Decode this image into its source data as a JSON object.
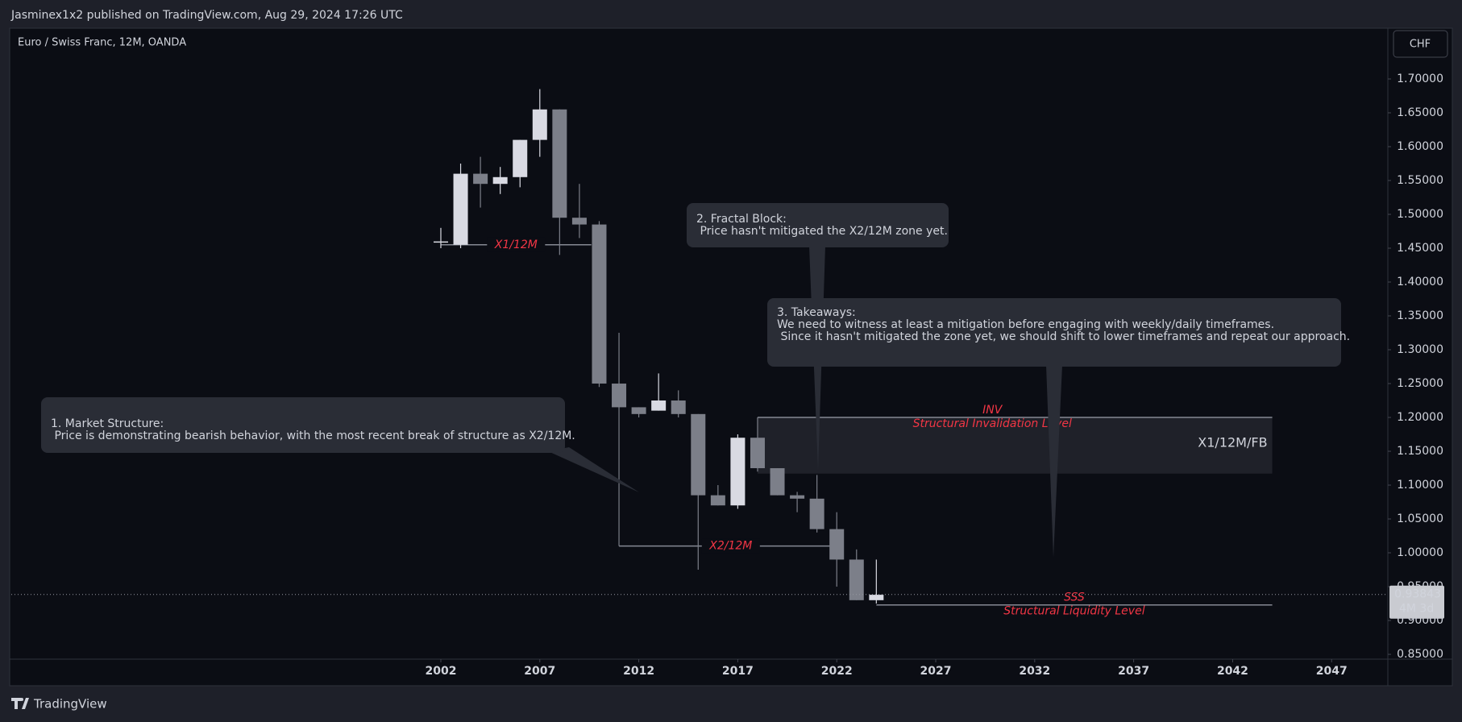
{
  "header": {
    "publisher": "Jasminex1x2 published on TradingView.com, Aug 29, 2024 17:26 UTC",
    "brand": "TradingView"
  },
  "chart_data": {
    "type": "candlestick",
    "title": "Euro / Swiss Franc, 12M, OANDA",
    "currency": "CHF",
    "x": [
      2002,
      2003,
      2004,
      2005,
      2006,
      2007,
      2008,
      2009,
      2010,
      2011,
      2012,
      2013,
      2014,
      2015,
      2016,
      2017,
      2018,
      2019,
      2020,
      2021,
      2022,
      2023,
      2024
    ],
    "open": [
      1.46,
      1.455,
      1.56,
      1.545,
      1.555,
      1.61,
      1.655,
      1.495,
      1.485,
      1.25,
      1.215,
      1.21,
      1.225,
      1.205,
      1.085,
      1.07,
      1.17,
      1.125,
      1.085,
      1.08,
      1.035,
      0.99,
      0.93
    ],
    "high": [
      1.48,
      1.575,
      1.585,
      1.57,
      1.61,
      1.685,
      1.655,
      1.545,
      1.49,
      1.325,
      1.215,
      1.265,
      1.24,
      1.205,
      1.1,
      1.175,
      1.2,
      1.125,
      1.09,
      1.115,
      1.06,
      1.005,
      0.99
    ],
    "low": [
      1.45,
      1.45,
      1.51,
      1.53,
      1.54,
      1.585,
      1.44,
      1.465,
      1.245,
      1.01,
      1.2,
      1.21,
      1.2,
      0.975,
      1.07,
      1.065,
      1.12,
      1.085,
      1.06,
      1.03,
      0.95,
      0.93,
      0.925
    ],
    "close": [
      1.46,
      1.56,
      1.545,
      1.555,
      1.61,
      1.655,
      1.495,
      1.485,
      1.25,
      1.215,
      1.205,
      1.225,
      1.205,
      1.085,
      1.07,
      1.17,
      1.125,
      1.085,
      1.08,
      1.035,
      0.99,
      0.93,
      0.938
    ],
    "up_color": "#d9dae3",
    "down_color": "#7c7f89",
    "xlim": [
      1980.3,
      2049.84
    ],
    "xticks": [
      2002,
      2007,
      2012,
      2017,
      2022,
      2027,
      2032,
      2037,
      2042,
      2047
    ],
    "ylim": [
      0.8429,
      1.7726
    ],
    "yticks": [
      {
        "value": 0.85,
        "label": "0.85000"
      },
      {
        "value": 0.9,
        "label": "0.90000"
      },
      {
        "value": 0.95,
        "label": "0.95000"
      },
      {
        "value": 1.0,
        "label": "1.00000"
      },
      {
        "value": 1.05,
        "label": "1.05000"
      },
      {
        "value": 1.1,
        "label": "1.10000"
      },
      {
        "value": 1.15,
        "label": "1.15000"
      },
      {
        "value": 1.2,
        "label": "1.20000"
      },
      {
        "value": 1.25,
        "label": "1.25000"
      },
      {
        "value": 1.3,
        "label": "1.30000"
      },
      {
        "value": 1.35,
        "label": "1.35000"
      },
      {
        "value": 1.4,
        "label": "1.40000"
      },
      {
        "value": 1.45,
        "label": "1.45000"
      },
      {
        "value": 1.5,
        "label": "1.50000"
      },
      {
        "value": 1.55,
        "label": "1.55000"
      },
      {
        "value": 1.6,
        "label": "1.60000"
      },
      {
        "value": 1.65,
        "label": "1.65000"
      },
      {
        "value": 1.7,
        "label": "1.70000"
      }
    ],
    "last_price": 0.93843,
    "countdown": "4M 3d",
    "levels": [
      {
        "label": "X1/12M",
        "value": 1.455,
        "x": [
          2002,
          2009.6
        ]
      },
      {
        "label": "X2/12M",
        "value": 1.01,
        "x": [
          2011,
          2022.3
        ]
      }
    ],
    "zone": {
      "label": "X1/12M/FB",
      "top": 1.2,
      "bottom": 1.117,
      "x": [
        2018,
        2044
      ],
      "line_label": "INV",
      "caption": "Structural Invalidation Level"
    },
    "liquidity": {
      "value": 0.923,
      "x": [
        2024,
        2044
      ],
      "line_label": "SSS",
      "caption": "Structural Liquidity Level"
    },
    "callouts": [
      {
        "lines": [
          "1. Market Structure:",
          " Price is demonstrating bearish behavior, with the most recent break of structure as X2/12M."
        ]
      },
      {
        "lines": [
          "2. Fractal Block:",
          " Price hasn't mitigated the X2/12M zone yet."
        ]
      },
      {
        "lines": [
          "3. Takeaways:",
          "We need to witness at least a mitigation before engaging with weekly/daily timeframes.",
          " Since it hasn't mitigated the zone yet, we should shift to lower timeframes and repeat our approach."
        ]
      }
    ]
  }
}
